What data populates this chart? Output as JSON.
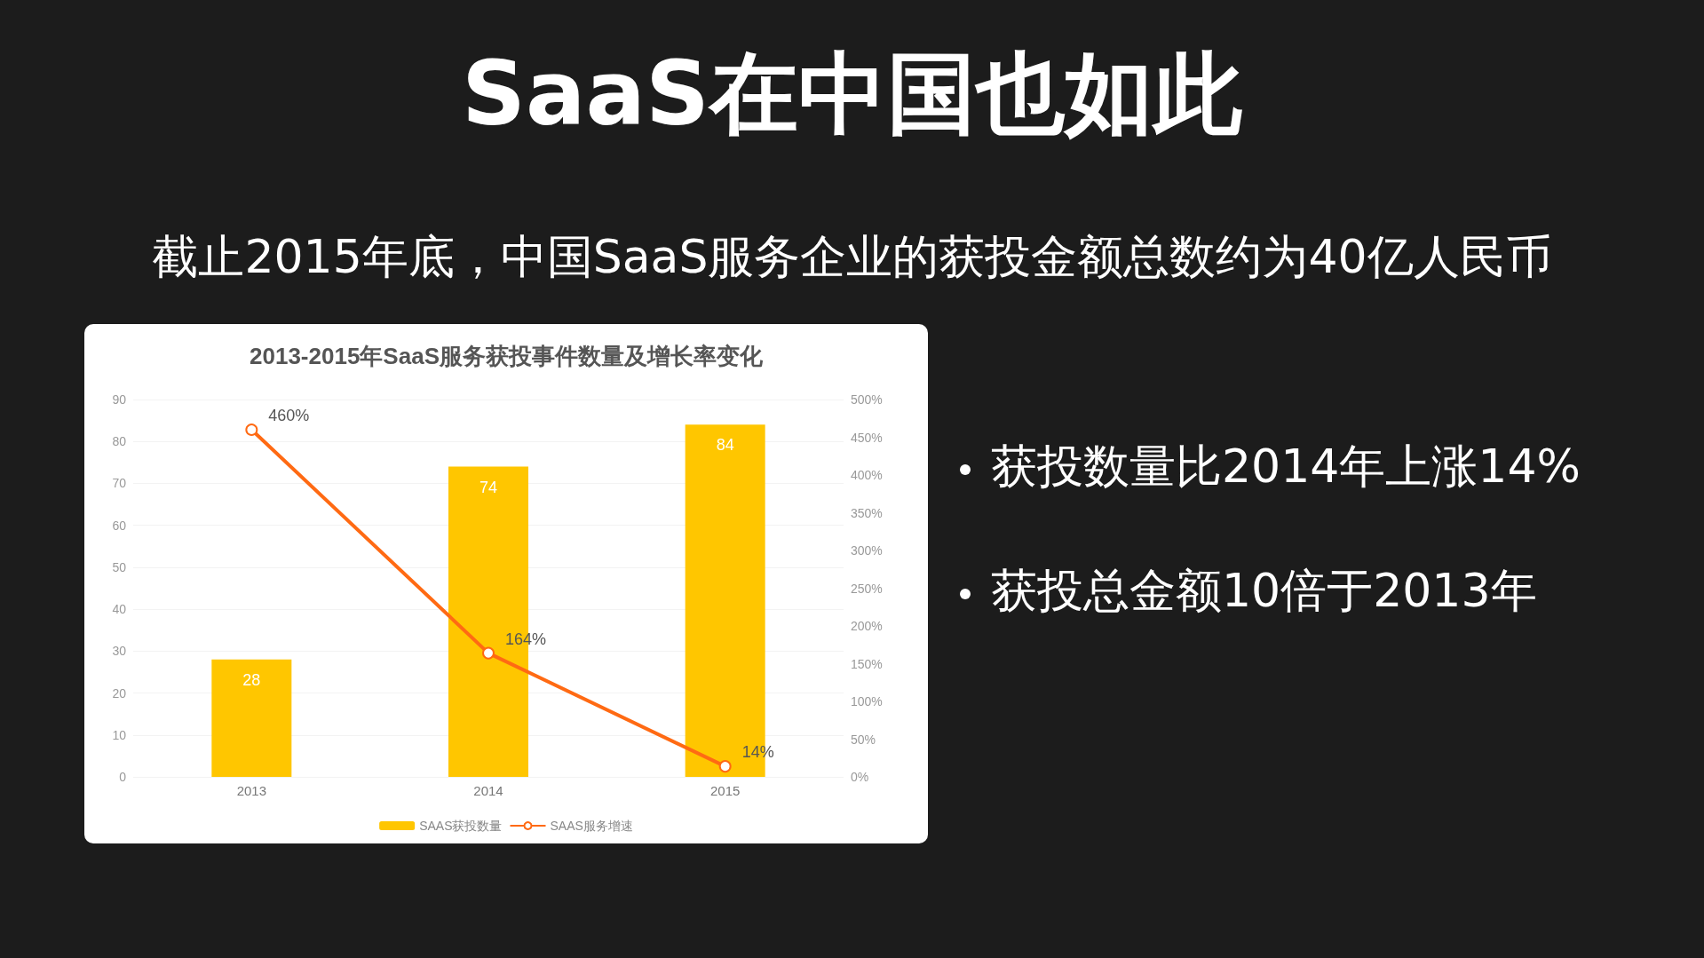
{
  "chart_data": {
    "type": "bar",
    "title": "SaaS在中国也如此",
    "subtitle": "截止2015年底，中国SaaS服务企业的获投金额总数约为40亿人民币",
    "annotations": [
      "2013-2015年SaaS服务获投事件数量及增长率变化",
      "获投数量比2014年上涨14%",
      "获投总金额10倍于2013年"
    ],
    "categories": [
      "2013",
      "2014",
      "2015"
    ],
    "series": [
      {
        "name": "SAAS获投数量",
        "color": "#ffc600",
        "values": [
          28,
          74,
          84
        ]
      },
      {
        "name": "SAAS服务增速",
        "type": "line",
        "axis": "y2",
        "color": "#ff6a13",
        "values": [
          460,
          164,
          14
        ],
        "value_labels": [
          "460%",
          "164%",
          "14%"
        ]
      }
    ],
    "data_labels": true,
    "marker": "circle",
    "line_style": "solid",
    "grid": "y",
    "legend": "bottom",
    "ylim": [
      0,
      90
    ],
    "yticks": [
      0,
      10,
      20,
      30,
      40,
      50,
      60,
      70,
      80,
      90
    ],
    "y2lim": [
      0,
      500
    ],
    "y2ticks": [
      {
        "value": 0,
        "label": "0%"
      },
      {
        "value": 50,
        "label": "50%"
      },
      {
        "value": 100,
        "label": "100%"
      },
      {
        "value": 150,
        "label": "150%"
      },
      {
        "value": 200,
        "label": "200%"
      },
      {
        "value": 250,
        "label": "250%"
      },
      {
        "value": 300,
        "label": "300%"
      },
      {
        "value": 350,
        "label": "350%"
      },
      {
        "value": 400,
        "label": "400%"
      },
      {
        "value": 450,
        "label": "450%"
      },
      {
        "value": 500,
        "label": "500%"
      }
    ]
  }
}
